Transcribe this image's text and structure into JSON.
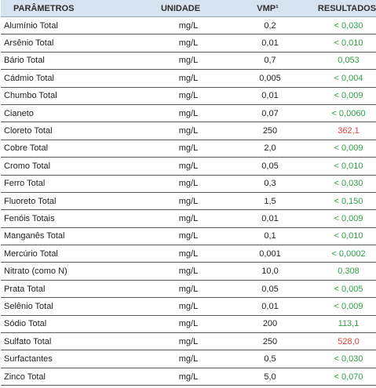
{
  "table": {
    "headers": {
      "parameter": "PARÂMETROS",
      "unit": "UNIDADE",
      "vmp": "VMP¹",
      "result": "RESULTADOS"
    },
    "colors": {
      "header_bg": "#d6e3f0",
      "result_ok": "#2ea043",
      "result_exceeds": "#e0403a"
    },
    "rows": [
      {
        "parameter": "Alumínio Total",
        "unit": "mg/L",
        "vmp": "0,2",
        "result": "< 0,030",
        "status": "ok"
      },
      {
        "parameter": "Arsênio Total",
        "unit": "mg/L",
        "vmp": "0,01",
        "result": "< 0,010",
        "status": "ok"
      },
      {
        "parameter": "Bário Total",
        "unit": "mg/L",
        "vmp": "0,7",
        "result": "0,053",
        "status": "ok"
      },
      {
        "parameter": "Cádmio Total",
        "unit": "mg/L",
        "vmp": "0,005",
        "result": "< 0,004",
        "status": "ok"
      },
      {
        "parameter": "Chumbo Total",
        "unit": "mg/L",
        "vmp": "0,01",
        "result": "< 0,009",
        "status": "ok"
      },
      {
        "parameter": "Cianeto",
        "unit": "mg/L",
        "vmp": "0,07",
        "result": "< 0,0060",
        "status": "ok"
      },
      {
        "parameter": "Cloreto Total",
        "unit": "mg/L",
        "vmp": "250",
        "result": "362,1",
        "status": "exceeds"
      },
      {
        "parameter": "Cobre Total",
        "unit": "mg/L",
        "vmp": "2,0",
        "result": "< 0,009",
        "status": "ok"
      },
      {
        "parameter": "Cromo Total",
        "unit": "mg/L",
        "vmp": "0,05",
        "result": "< 0,010",
        "status": "ok"
      },
      {
        "parameter": "Ferro Total",
        "unit": "mg/L",
        "vmp": "0,3",
        "result": "< 0,030",
        "status": "ok"
      },
      {
        "parameter": "Fluoreto Total",
        "unit": "mg/L",
        "vmp": "1,5",
        "result": "< 0,150",
        "status": "ok"
      },
      {
        "parameter": "Fenóis Totais",
        "unit": "mg/L",
        "vmp": "0,01",
        "result": "< 0,009",
        "status": "ok"
      },
      {
        "parameter": "Manganês Total",
        "unit": "mg/L",
        "vmp": "0,1",
        "result": "< 0,010",
        "status": "ok"
      },
      {
        "parameter": "Mercúrio Total",
        "unit": "mg/L",
        "vmp": "0,001",
        "result": "< 0,0002",
        "status": "ok"
      },
      {
        "parameter": "Nitrato (como N)",
        "unit": "mg/L",
        "vmp": "10,0",
        "result": "0,308",
        "status": "ok"
      },
      {
        "parameter": "Prata Total",
        "unit": "mg/L",
        "vmp": "0,05",
        "result": "< 0,005",
        "status": "ok"
      },
      {
        "parameter": "Selênio Total",
        "unit": "mg/L",
        "vmp": "0,01",
        "result": "< 0,009",
        "status": "ok"
      },
      {
        "parameter": "Sódio Total",
        "unit": "mg/L",
        "vmp": "200",
        "result": "113,1",
        "status": "ok"
      },
      {
        "parameter": "Sulfato Total",
        "unit": "mg/L",
        "vmp": "250",
        "result": "528,0",
        "status": "exceeds"
      },
      {
        "parameter": "Surfactantes",
        "unit": "mg/L",
        "vmp": "0,5",
        "result": "< 0,030",
        "status": "ok"
      },
      {
        "parameter": "Zinco Total",
        "unit": "mg/L",
        "vmp": "5,0",
        "result": "< 0,070",
        "status": "ok"
      }
    ]
  }
}
